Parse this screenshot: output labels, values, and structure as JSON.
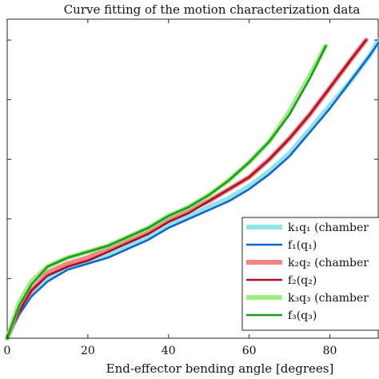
{
  "chart_data": {
    "type": "line",
    "title": "Curve fitting of the motion characterization data",
    "xlabel": "End-effector bending angle [degrees]",
    "ylabel": "",
    "xlim": [
      0,
      92
    ],
    "ylim": [
      0,
      1.07
    ],
    "x_ticks": [
      0,
      20,
      40,
      60,
      80
    ],
    "y_ticks": [
      0.0,
      0.2,
      0.4,
      0.6,
      0.8,
      1.0
    ],
    "grid": false,
    "legend_position": "bottom-right",
    "series": [
      {
        "name": "k₁q₁ (chamber",
        "style": "raw",
        "color": "#7fdde6",
        "x": [
          0,
          3,
          6,
          10,
          15,
          20,
          25,
          30,
          35,
          40,
          45,
          50,
          55,
          60,
          65,
          70,
          75,
          80,
          85,
          90,
          92
        ],
        "y": [
          0.0,
          0.09,
          0.15,
          0.2,
          0.24,
          0.26,
          0.28,
          0.31,
          0.34,
          0.38,
          0.41,
          0.44,
          0.47,
          0.51,
          0.56,
          0.62,
          0.7,
          0.78,
          0.86,
          0.95,
          1.0
        ]
      },
      {
        "name": "f₁(q₁)",
        "style": "fit",
        "color": "#1466cc",
        "x": [
          0,
          3,
          6,
          10,
          15,
          20,
          25,
          30,
          35,
          40,
          45,
          50,
          55,
          60,
          65,
          70,
          75,
          80,
          85,
          90,
          92
        ],
        "y": [
          0.0,
          0.08,
          0.14,
          0.19,
          0.23,
          0.25,
          0.27,
          0.3,
          0.33,
          0.37,
          0.4,
          0.43,
          0.46,
          0.5,
          0.55,
          0.61,
          0.69,
          0.77,
          0.86,
          0.95,
          0.99
        ]
      },
      {
        "name": "k₂q₂ (chamber",
        "style": "raw",
        "color": "#f07070",
        "x": [
          0,
          3,
          6,
          10,
          15,
          20,
          25,
          30,
          35,
          40,
          45,
          50,
          55,
          60,
          65,
          70,
          75,
          80,
          85,
          89
        ],
        "y": [
          0.0,
          0.1,
          0.16,
          0.22,
          0.25,
          0.27,
          0.3,
          0.33,
          0.36,
          0.4,
          0.43,
          0.46,
          0.5,
          0.54,
          0.6,
          0.67,
          0.75,
          0.84,
          0.93,
          1.0
        ]
      },
      {
        "name": "f₂(q₂)",
        "style": "fit",
        "color": "#a8102a",
        "x": [
          0,
          3,
          6,
          10,
          15,
          20,
          25,
          30,
          35,
          40,
          45,
          50,
          55,
          60,
          65,
          70,
          75,
          80,
          85,
          89
        ],
        "y": [
          0.0,
          0.09,
          0.16,
          0.21,
          0.24,
          0.26,
          0.29,
          0.32,
          0.35,
          0.39,
          0.42,
          0.46,
          0.5,
          0.54,
          0.6,
          0.67,
          0.75,
          0.84,
          0.93,
          1.0
        ]
      },
      {
        "name": "k₃q₃ (chamber",
        "style": "raw",
        "color": "#8ee86e",
        "x": [
          0,
          3,
          6,
          10,
          15,
          20,
          25,
          30,
          35,
          40,
          45,
          50,
          55,
          60,
          65,
          70,
          75,
          79
        ],
        "y": [
          0.0,
          0.12,
          0.19,
          0.24,
          0.27,
          0.29,
          0.31,
          0.34,
          0.37,
          0.41,
          0.44,
          0.48,
          0.53,
          0.59,
          0.66,
          0.76,
          0.88,
          0.98
        ]
      },
      {
        "name": "f₃(q₃)",
        "style": "fit",
        "color": "#1e9a24",
        "x": [
          0,
          3,
          6,
          10,
          15,
          20,
          25,
          30,
          35,
          40,
          45,
          50,
          55,
          60,
          65,
          70,
          75,
          79
        ],
        "y": [
          0.0,
          0.11,
          0.18,
          0.24,
          0.27,
          0.29,
          0.31,
          0.34,
          0.37,
          0.41,
          0.44,
          0.48,
          0.53,
          0.59,
          0.66,
          0.75,
          0.87,
          0.98
        ]
      }
    ]
  }
}
